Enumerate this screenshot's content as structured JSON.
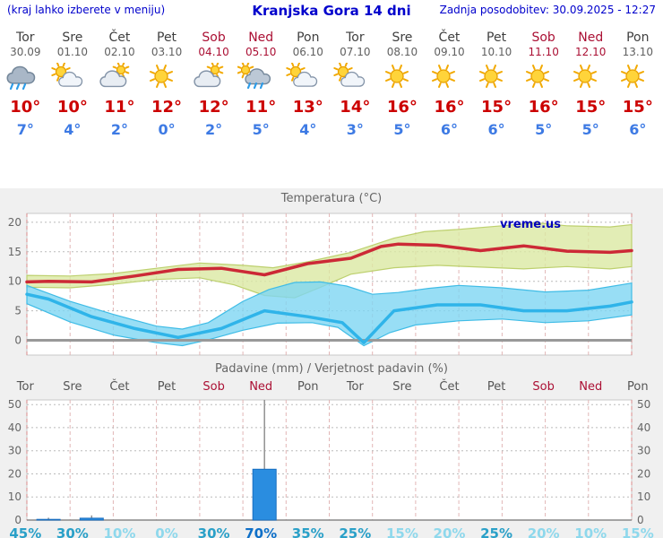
{
  "header": {
    "hint": "(kraj lahko izberete v meniju)",
    "title": "Kranjska Gora 14 dni",
    "last_update": "Zadnja posodobitev: 30.09.2025 - 12:27"
  },
  "watermark": "vreme.us",
  "colors": {
    "link_blue": "#0000cc",
    "weekend_red": "#ab1034",
    "tmax_red": "#cc0000",
    "tmin_blue": "#3d7ae4",
    "panel_gray": "#f0f0f0",
    "bar_blue": "#2a8de0",
    "prob_high": "#0d6fc8",
    "prob_mid": "#2aa0c8",
    "prob_low": "#8ed8ec"
  },
  "forecast": {
    "deg": "°",
    "days": [
      {
        "name": "Tor",
        "date": "30.09",
        "icon": "rain",
        "tmax": "10",
        "tmin": "7",
        "weekend": false
      },
      {
        "name": "Sre",
        "date": "01.10",
        "icon": "partly",
        "tmax": "10",
        "tmin": "4",
        "weekend": false
      },
      {
        "name": "Čet",
        "date": "02.10",
        "icon": "cloudy-sun",
        "tmax": "11",
        "tmin": "2",
        "weekend": false
      },
      {
        "name": "Pet",
        "date": "03.10",
        "icon": "sunny",
        "tmax": "12",
        "tmin": "0",
        "weekend": false
      },
      {
        "name": "Sob",
        "date": "04.10",
        "icon": "cloudy-sun",
        "tmax": "12",
        "tmin": "2",
        "weekend": true
      },
      {
        "name": "Ned",
        "date": "05.10",
        "icon": "rain-sun",
        "tmax": "11",
        "tmin": "5",
        "weekend": true
      },
      {
        "name": "Pon",
        "date": "06.10",
        "icon": "partly",
        "tmax": "13",
        "tmin": "4",
        "weekend": false
      },
      {
        "name": "Tor",
        "date": "07.10",
        "icon": "partly",
        "tmax": "14",
        "tmin": "3",
        "weekend": false
      },
      {
        "name": "Sre",
        "date": "08.10",
        "icon": "sunny",
        "tmax": "16",
        "tmin": "5",
        "weekend": false
      },
      {
        "name": "Čet",
        "date": "09.10",
        "icon": "sunny",
        "tmax": "16",
        "tmin": "6",
        "weekend": false
      },
      {
        "name": "Pet",
        "date": "10.10",
        "icon": "sunny",
        "tmax": "15",
        "tmin": "6",
        "weekend": false
      },
      {
        "name": "Sob",
        "date": "11.10",
        "icon": "sunny",
        "tmax": "16",
        "tmin": "5",
        "weekend": true
      },
      {
        "name": "Ned",
        "date": "12.10",
        "icon": "sunny",
        "tmax": "15",
        "tmin": "5",
        "weekend": true
      },
      {
        "name": "Pon",
        "date": "13.10",
        "icon": "sunny",
        "tmax": "15",
        "tmin": "6",
        "weekend": false
      }
    ]
  },
  "chart_data": [
    {
      "type": "line",
      "title": "Temperatura (°C)",
      "x_labels": [
        "Tor 30.09",
        "Sre 01.10",
        "Čet 02.10",
        "Pet 03.10",
        "Sob 04.10",
        "Ned 05.10",
        "Pon 06.10",
        "Tor 07.10",
        "Sre 08.10",
        "Čet 09.10",
        "Pet 10.10",
        "Sob 11.10",
        "Ned 12.10",
        "Pon 13.10"
      ],
      "x_range_days": [
        0,
        14
      ],
      "ylim": [
        -2.5,
        21.5
      ],
      "yticks": [
        0,
        5,
        10,
        15,
        20
      ],
      "grid": true,
      "legend": "none",
      "series": [
        {
          "name": "temp-max-range-band",
          "type": "band",
          "color": "#dbe8a2",
          "stroke": "#bdd06e",
          "upper": [
            [
              0,
              11.0
            ],
            [
              1,
              10.9
            ],
            [
              2,
              11.3
            ],
            [
              3,
              12.2
            ],
            [
              4,
              13.1
            ],
            [
              5,
              12.7
            ],
            [
              5.7,
              12.3
            ],
            [
              6.5,
              13.3
            ],
            [
              7.5,
              14.9
            ],
            [
              8.5,
              17.3
            ],
            [
              9.2,
              18.4
            ],
            [
              10,
              18.8
            ],
            [
              11,
              19.4
            ],
            [
              11.8,
              19.9
            ],
            [
              12.5,
              19.4
            ],
            [
              13.5,
              19.2
            ],
            [
              14,
              19.6
            ]
          ],
          "lower": [
            [
              0,
              9.0
            ],
            [
              1,
              8.9
            ],
            [
              2,
              9.5
            ],
            [
              3,
              10.3
            ],
            [
              4,
              10.6
            ],
            [
              4.8,
              9.4
            ],
            [
              5.5,
              7.6
            ],
            [
              6.2,
              7.2
            ],
            [
              6.8,
              9.0
            ],
            [
              7.5,
              11.2
            ],
            [
              8.5,
              12.3
            ],
            [
              9.5,
              12.7
            ],
            [
              10.5,
              12.4
            ],
            [
              11.5,
              12.1
            ],
            [
              12.5,
              12.5
            ],
            [
              13.5,
              12.1
            ],
            [
              14,
              12.5
            ]
          ]
        },
        {
          "name": "temp-min-range-band",
          "type": "band",
          "color": "#7ed6f2",
          "stroke": "#3fbce6",
          "upper": [
            [
              0,
              9.3
            ],
            [
              1,
              6.6
            ],
            [
              2,
              4.4
            ],
            [
              3,
              2.4
            ],
            [
              3.6,
              1.9
            ],
            [
              4.2,
              3.0
            ],
            [
              5,
              6.6
            ],
            [
              5.6,
              8.6
            ],
            [
              6.2,
              9.8
            ],
            [
              6.8,
              9.9
            ],
            [
              7.4,
              9.2
            ],
            [
              8,
              7.8
            ],
            [
              8.6,
              8.1
            ],
            [
              9.3,
              8.8
            ],
            [
              10,
              9.3
            ],
            [
              11,
              8.9
            ],
            [
              12,
              8.2
            ],
            [
              13,
              8.5
            ],
            [
              14,
              9.7
            ]
          ],
          "lower": [
            [
              0,
              6.2
            ],
            [
              1,
              3.1
            ],
            [
              2,
              0.9
            ],
            [
              3,
              -0.4
            ],
            [
              3.6,
              -0.9
            ],
            [
              4.2,
              0.1
            ],
            [
              5,
              1.7
            ],
            [
              5.8,
              2.9
            ],
            [
              6.6,
              3.0
            ],
            [
              7.2,
              2.2
            ],
            [
              7.8,
              -0.9
            ],
            [
              8.4,
              1.3
            ],
            [
              9,
              2.6
            ],
            [
              10,
              3.3
            ],
            [
              11,
              3.6
            ],
            [
              12,
              3.0
            ],
            [
              13,
              3.3
            ],
            [
              14,
              4.3
            ]
          ]
        },
        {
          "name": "temperature-line",
          "type": "line",
          "color": "#cc2936",
          "width": 3.5,
          "points": [
            [
              0,
              9.9
            ],
            [
              0.5,
              10.0
            ],
            [
              1.5,
              9.9
            ],
            [
              2.5,
              10.9
            ],
            [
              3.5,
              12.0
            ],
            [
              4.5,
              12.2
            ],
            [
              5.5,
              11.1
            ],
            [
              6.5,
              13.0
            ],
            [
              7.5,
              13.9
            ],
            [
              8.2,
              15.9
            ],
            [
              8.6,
              16.3
            ],
            [
              9.5,
              16.1
            ],
            [
              10.5,
              15.2
            ],
            [
              11.5,
              16.0
            ],
            [
              12.5,
              15.1
            ],
            [
              13.5,
              14.9
            ],
            [
              14,
              15.2
            ]
          ]
        },
        {
          "name": "temp-min-line",
          "type": "line",
          "color": "#2fb4e9",
          "width": 3.5,
          "points": [
            [
              0,
              7.8
            ],
            [
              0.5,
              7.0
            ],
            [
              1.5,
              4.0
            ],
            [
              2.5,
              2.0
            ],
            [
              3.5,
              0.5
            ],
            [
              4.5,
              2.0
            ],
            [
              5.5,
              5.0
            ],
            [
              6.5,
              4.0
            ],
            [
              7.3,
              3.0
            ],
            [
              7.8,
              -0.4
            ],
            [
              8.5,
              5.0
            ],
            [
              9.5,
              6.0
            ],
            [
              10.5,
              6.0
            ],
            [
              11.5,
              5.0
            ],
            [
              12.5,
              5.0
            ],
            [
              13.5,
              5.8
            ],
            [
              14,
              6.5
            ]
          ]
        }
      ]
    },
    {
      "type": "bar",
      "title": "Padavine (mm) / Verjetnost padavin (%)",
      "day_labels": [
        "Tor",
        "Sre",
        "Čet",
        "Pet",
        "Sob",
        "Ned",
        "Pon",
        "Tor",
        "Sre",
        "Čet",
        "Pet",
        "Sob",
        "Ned",
        "Pon"
      ],
      "weekend_indices": [
        4,
        5,
        11,
        12
      ],
      "ylim": [
        0,
        52
      ],
      "yticks": [
        0,
        10,
        20,
        30,
        40,
        50
      ],
      "grid": true,
      "precipitation_mm": [
        0.3,
        0.8,
        0,
        0,
        0,
        22,
        0,
        0,
        0,
        0,
        0,
        0,
        0,
        0
      ],
      "precipitation_max_mm": [
        1,
        2,
        0,
        0,
        0,
        53,
        0,
        0,
        0,
        0,
        0,
        0,
        0,
        0
      ],
      "probability_pct": [
        45,
        30,
        10,
        0,
        30,
        70,
        35,
        25,
        15,
        20,
        25,
        20,
        10,
        15
      ]
    }
  ]
}
